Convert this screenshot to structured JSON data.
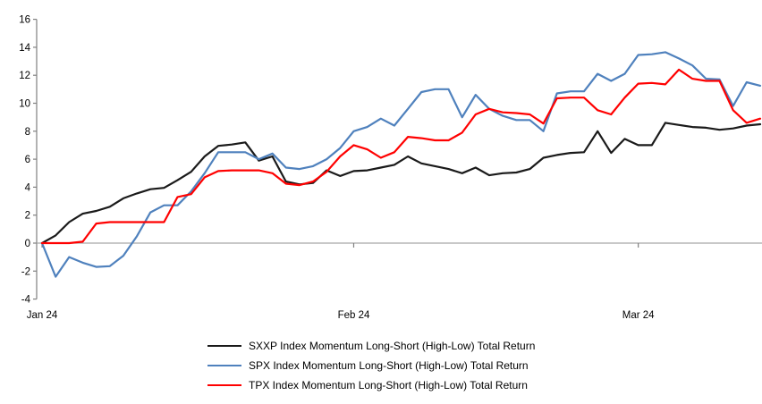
{
  "chart_data": {
    "type": "line",
    "title": "",
    "xlabel": "",
    "ylabel": "",
    "ylim": [
      -4,
      16
    ],
    "y_ticks": [
      16,
      14,
      12,
      10,
      8,
      6,
      4,
      2,
      0,
      -2,
      -4
    ],
    "grid": "zero-line-only",
    "legend_position": "bottom-left",
    "n_points": 54,
    "x_ticks": [
      {
        "index": 0,
        "label": "Jan 24"
      },
      {
        "index": 23,
        "label": "Feb 24"
      },
      {
        "index": 44,
        "label": "Mar 24"
      }
    ],
    "colors": {
      "axis": "#808080",
      "zero_line": "#a6a6a6",
      "tick_text": "#000000"
    },
    "series": [
      {
        "name": "SXXP Index Momentum Long-Short (High-Low) Total Return",
        "color": "#1a1a1a",
        "values": [
          0,
          0.55,
          1.5,
          2.1,
          2.3,
          2.6,
          3.2,
          3.55,
          3.85,
          3.95,
          4.5,
          5.1,
          6.2,
          6.95,
          7.05,
          7.2,
          5.9,
          6.2,
          4.4,
          4.2,
          4.3,
          5.2,
          4.8,
          5.15,
          5.2,
          5.4,
          5.6,
          6.2,
          5.7,
          5.5,
          5.3,
          5.0,
          5.4,
          4.85,
          5.0,
          5.05,
          5.3,
          6.1,
          6.3,
          6.45,
          6.5,
          8.0,
          6.45,
          7.45,
          7.0,
          7.0,
          8.6,
          8.45,
          8.3,
          8.25,
          8.1,
          8.2,
          8.4,
          8.5
        ]
      },
      {
        "name": "SPX Index Momentum Long-Short (High-Low) Total Return",
        "color": "#4f81bd",
        "values": [
          0,
          -2.4,
          -1.0,
          -1.4,
          -1.7,
          -1.65,
          -0.9,
          0.5,
          2.2,
          2.7,
          2.7,
          3.7,
          5.0,
          6.5,
          6.5,
          6.5,
          6.0,
          6.4,
          5.4,
          5.3,
          5.5,
          6.0,
          6.8,
          8.0,
          8.3,
          8.9,
          8.4,
          9.6,
          10.8,
          11.0,
          11.0,
          9.0,
          10.6,
          9.6,
          9.1,
          8.8,
          8.8,
          8.0,
          10.7,
          10.85,
          10.85,
          12.1,
          11.6,
          12.1,
          13.45,
          13.5,
          13.65,
          13.2,
          12.7,
          11.75,
          11.7,
          9.8,
          11.5,
          11.25
        ]
      },
      {
        "name": "TPX Index Momentum Long-Short (High-Low) Total Return",
        "color": "#ff0000",
        "values": [
          0,
          0,
          0,
          0.1,
          1.4,
          1.5,
          1.5,
          1.5,
          1.5,
          1.5,
          3.3,
          3.5,
          4.7,
          5.15,
          5.2,
          5.2,
          5.2,
          5.0,
          4.25,
          4.15,
          4.4,
          5.1,
          6.2,
          7.0,
          6.7,
          6.1,
          6.5,
          7.6,
          7.5,
          7.35,
          7.35,
          7.9,
          9.2,
          9.6,
          9.35,
          9.3,
          9.2,
          8.55,
          10.35,
          10.4,
          10.4,
          9.5,
          9.2,
          10.4,
          11.4,
          11.45,
          11.35,
          12.4,
          11.75,
          11.6,
          11.6,
          9.5,
          8.6,
          8.9
        ]
      }
    ]
  }
}
